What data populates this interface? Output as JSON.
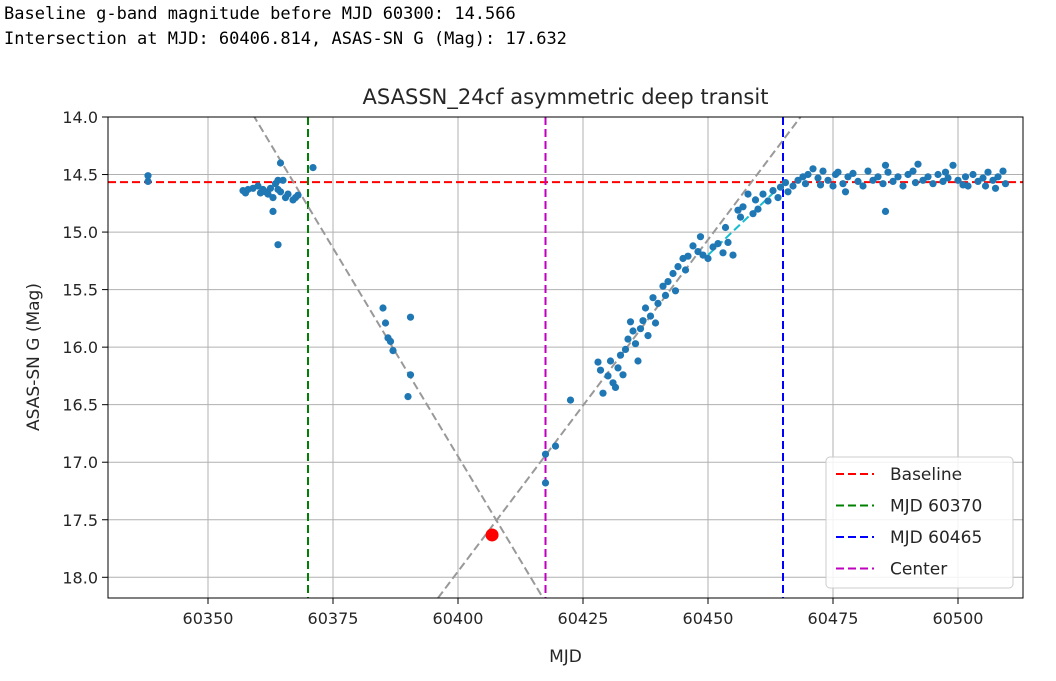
{
  "output_lines": [
    "Baseline g-band magnitude before MJD 60300: 14.566",
    "Intersection at MJD: 60406.814, ASAS-SN G (Mag): 17.632"
  ],
  "chart_data": {
    "type": "scatter",
    "title": "ASASSN_24cf asymmetric deep transit",
    "xlabel": "MJD",
    "ylabel": "ASAS-SN G (Mag)",
    "xlim": [
      60330,
      60513
    ],
    "ylim": [
      18.18,
      14.0
    ],
    "y_inverted": true,
    "grid": true,
    "xticks": [
      60350,
      60375,
      60400,
      60425,
      60450,
      60475,
      60500
    ],
    "yticks": [
      14.0,
      14.5,
      15.0,
      15.5,
      16.0,
      16.5,
      17.0,
      17.5,
      18.0
    ],
    "legend_position": "lower-right",
    "legend": [
      {
        "label": "Baseline",
        "color": "#ff0000"
      },
      {
        "label": "MJD 60370",
        "color": "#008000"
      },
      {
        "label": "MJD 60465",
        "color": "#0000ff"
      },
      {
        "label": "Center",
        "color": "#bf00bf"
      }
    ],
    "hlines": [
      {
        "y": 14.566,
        "color": "#ff0000",
        "style": "dashed",
        "label": "Baseline"
      }
    ],
    "vlines": [
      {
        "x": 60370,
        "color": "#008000",
        "style": "dashed",
        "label": "MJD 60370"
      },
      {
        "x": 60465,
        "color": "#0000ff",
        "style": "dashed",
        "label": "MJD 60465"
      },
      {
        "x": 60417.5,
        "color": "#bf00bf",
        "style": "dashed",
        "label": "Center"
      }
    ],
    "fit_lines": [
      {
        "color": "#999999",
        "style": "dashed",
        "points": [
          [
            60359,
            13.98
          ],
          [
            60417,
            18.18
          ]
        ]
      },
      {
        "color": "#999999",
        "style": "dashed",
        "points": [
          [
            60396,
            18.18
          ],
          [
            60468.5,
            14.0
          ]
        ]
      },
      {
        "color": "#17becf",
        "style": "dashed",
        "points": [
          [
            60450,
            15.2
          ],
          [
            60465,
            14.58
          ]
        ]
      }
    ],
    "intersection": {
      "x": 60406.814,
      "y": 17.632,
      "color": "#ff0000"
    },
    "point_color": "#1f77b4",
    "points": [
      [
        60338,
        14.51
      ],
      [
        60338,
        14.56
      ],
      [
        60357,
        14.64
      ],
      [
        60357.5,
        14.66
      ],
      [
        60358,
        14.63
      ],
      [
        60359,
        14.62
      ],
      [
        60360,
        14.6
      ],
      [
        60360.5,
        14.66
      ],
      [
        60361,
        14.63
      ],
      [
        60361.5,
        14.65
      ],
      [
        60362,
        14.67
      ],
      [
        60362.5,
        14.62
      ],
      [
        60363,
        14.7
      ],
      [
        60363.5,
        14.58
      ],
      [
        60364,
        14.63
      ],
      [
        60364.5,
        14.65
      ],
      [
        60363,
        14.82
      ],
      [
        60364,
        15.11
      ],
      [
        60364,
        14.55
      ],
      [
        60364.5,
        14.4
      ],
      [
        60365,
        14.55
      ],
      [
        60365.5,
        14.7
      ],
      [
        60366,
        14.67
      ],
      [
        60367,
        14.72
      ],
      [
        60367.5,
        14.7
      ],
      [
        60368,
        14.68
      ],
      [
        60371,
        14.44
      ],
      [
        60385,
        15.66
      ],
      [
        60385.5,
        15.79
      ],
      [
        60386,
        15.92
      ],
      [
        60386.5,
        15.95
      ],
      [
        60387,
        16.03
      ],
      [
        60390,
        16.43
      ],
      [
        60390.5,
        16.24
      ],
      [
        60390.5,
        15.74
      ],
      [
        60417.5,
        16.93
      ],
      [
        60417.5,
        17.18
      ],
      [
        60419.5,
        16.86
      ],
      [
        60422.5,
        16.46
      ],
      [
        60428,
        16.13
      ],
      [
        60428.5,
        16.2
      ],
      [
        60429,
        16.4
      ],
      [
        60430,
        16.25
      ],
      [
        60430.5,
        16.12
      ],
      [
        60431,
        16.31
      ],
      [
        60431.5,
        16.35
      ],
      [
        60432,
        16.18
      ],
      [
        60432.5,
        16.07
      ],
      [
        60433,
        16.24
      ],
      [
        60433.5,
        16.02
      ],
      [
        60434,
        15.93
      ],
      [
        60434.5,
        15.78
      ],
      [
        60435,
        15.86
      ],
      [
        60435.5,
        15.97
      ],
      [
        60436,
        16.12
      ],
      [
        60436.5,
        15.84
      ],
      [
        60437,
        15.77
      ],
      [
        60437.5,
        15.66
      ],
      [
        60438,
        15.9
      ],
      [
        60438.5,
        15.73
      ],
      [
        60439,
        15.57
      ],
      [
        60439.5,
        15.79
      ],
      [
        60440,
        15.62
      ],
      [
        60441,
        15.47
      ],
      [
        60441.5,
        15.55
      ],
      [
        60442,
        15.43
      ],
      [
        60443,
        15.36
      ],
      [
        60443.5,
        15.51
      ],
      [
        60444,
        15.3
      ],
      [
        60445,
        15.23
      ],
      [
        60445.5,
        15.33
      ],
      [
        60446,
        15.21
      ],
      [
        60447,
        15.12
      ],
      [
        60448,
        15.17
      ],
      [
        60448.5,
        15.04
      ],
      [
        60449,
        15.2
      ],
      [
        60450,
        15.23
      ],
      [
        60451,
        15.13
      ],
      [
        60452,
        15.1
      ],
      [
        60453,
        15.18
      ],
      [
        60453.5,
        14.96
      ],
      [
        60454,
        15.09
      ],
      [
        60455,
        15.2
      ],
      [
        60456,
        14.81
      ],
      [
        60456.5,
        14.87
      ],
      [
        60457,
        14.78
      ],
      [
        60458,
        14.67
      ],
      [
        60459,
        14.84
      ],
      [
        60459.5,
        14.72
      ],
      [
        60460,
        14.8
      ],
      [
        60461,
        14.67
      ],
      [
        60462,
        14.73
      ],
      [
        60463,
        14.64
      ],
      [
        60464,
        14.7
      ],
      [
        60464.5,
        14.61
      ],
      [
        60465.5,
        14.57
      ],
      [
        60466,
        14.65
      ],
      [
        60467,
        14.6
      ],
      [
        60468,
        14.55
      ],
      [
        60469,
        14.52
      ],
      [
        60469.5,
        14.58
      ],
      [
        60470,
        14.5
      ],
      [
        60471,
        14.45
      ],
      [
        60472,
        14.53
      ],
      [
        60472.5,
        14.59
      ],
      [
        60473,
        14.47
      ],
      [
        60474,
        14.55
      ],
      [
        60475,
        14.6
      ],
      [
        60475.5,
        14.5
      ],
      [
        60476,
        14.48
      ],
      [
        60477,
        14.58
      ],
      [
        60477.5,
        14.65
      ],
      [
        60478,
        14.52
      ],
      [
        60479,
        14.49
      ],
      [
        60480,
        14.56
      ],
      [
        60481,
        14.6
      ],
      [
        60482,
        14.47
      ],
      [
        60483,
        14.55
      ],
      [
        60484,
        14.52
      ],
      [
        60485,
        14.58
      ],
      [
        60485.5,
        14.42
      ],
      [
        60485.5,
        14.82
      ],
      [
        60486,
        14.48
      ],
      [
        60487,
        14.56
      ],
      [
        60488,
        14.52
      ],
      [
        60489,
        14.6
      ],
      [
        60490,
        14.5
      ],
      [
        60491,
        14.47
      ],
      [
        60491.5,
        14.57
      ],
      [
        60492,
        14.41
      ],
      [
        60493,
        14.55
      ],
      [
        60494,
        14.52
      ],
      [
        60495,
        14.58
      ],
      [
        60496,
        14.5
      ],
      [
        60497,
        14.56
      ],
      [
        60497.5,
        14.48
      ],
      [
        60498,
        14.53
      ],
      [
        60499,
        14.42
      ],
      [
        60500,
        14.55
      ],
      [
        60501,
        14.59
      ],
      [
        60501.5,
        14.52
      ],
      [
        60502,
        14.6
      ],
      [
        60503,
        14.5
      ],
      [
        60504,
        14.56
      ],
      [
        60505,
        14.53
      ],
      [
        60505.5,
        14.6
      ],
      [
        60506,
        14.48
      ],
      [
        60507,
        14.55
      ],
      [
        60507.5,
        14.62
      ],
      [
        60508,
        14.52
      ],
      [
        60509,
        14.47
      ],
      [
        60509.5,
        14.58
      ]
    ]
  }
}
